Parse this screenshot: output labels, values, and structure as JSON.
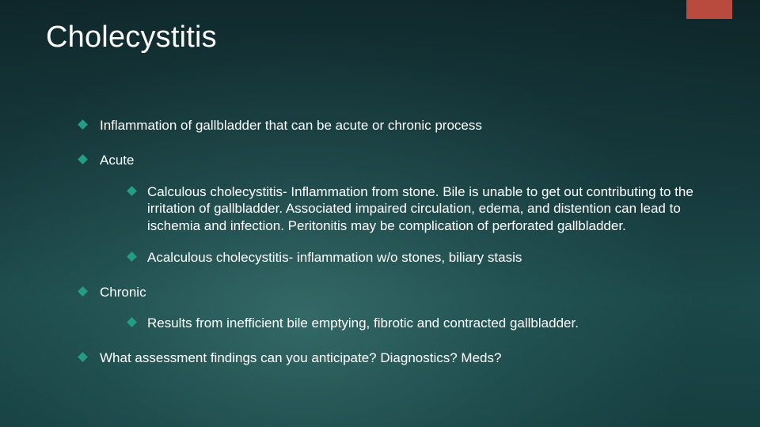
{
  "slide": {
    "title": "Cholecystitis",
    "accent_color": "#b84b3e",
    "bullet_color": "#239e84",
    "background_gradient": {
      "type": "radial+linear",
      "inner_color": "#2f6663",
      "outer_color": "#0e2528"
    },
    "title_fontsize": 38,
    "body_fontsize": 17,
    "text_color": "#ffffff",
    "bullets": [
      {
        "text": "Inflammation of gallbladder that can be acute or chronic process",
        "children": []
      },
      {
        "text": "Acute",
        "children": [
          {
            "text": "Calculous cholecystitis- Inflammation from stone. Bile is unable to get out contributing to the irritation of gallbladder. Associated impaired circulation, edema, and distention can lead to ischemia and infection. Peritonitis may be complication of perforated gallbladder."
          },
          {
            "text": "Acalculous cholecystitis- inflammation w/o stones, biliary stasis"
          }
        ]
      },
      {
        "text": "Chronic",
        "children": [
          {
            "text": "Results from inefficient bile emptying, fibrotic and contracted gallbladder."
          }
        ]
      },
      {
        "text": "What assessment findings can you anticipate? Diagnostics? Meds?",
        "children": []
      }
    ]
  }
}
